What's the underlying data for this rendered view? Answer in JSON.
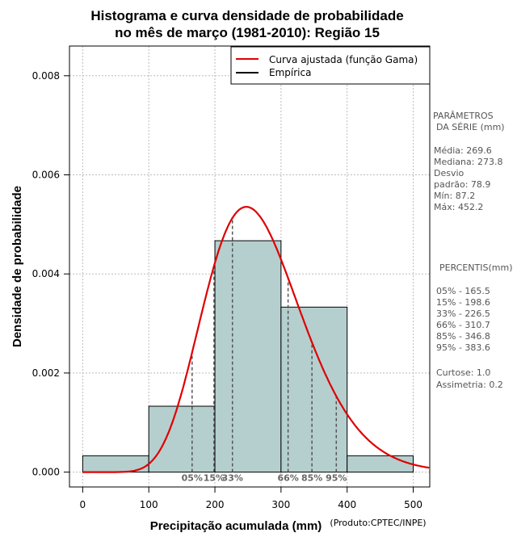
{
  "chart_data": {
    "type": "bar",
    "title_lines": [
      "Histograma e curva densidade de probabilidade",
      "no mês de março (1981-2010): Região 15"
    ],
    "xlabel": "Precipitação acumulada (mm)",
    "ylabel": "Densidade de probabilidade",
    "credit": "(Produto:CPTEC/INPE)",
    "xlim": [
      -20,
      525
    ],
    "ylim": [
      -0.0003,
      0.0086
    ],
    "x_ticks": [
      0,
      100,
      200,
      300,
      400,
      500
    ],
    "y_ticks": [
      0.0,
      0.002,
      0.004,
      0.006,
      0.008
    ],
    "y_tick_labels": [
      "0.000",
      "0.002",
      "0.004",
      "0.006",
      "0.008"
    ],
    "bins": [
      {
        "from": 0,
        "to": 100,
        "density": 0.00033
      },
      {
        "from": 100,
        "to": 200,
        "density": 0.00133
      },
      {
        "from": 200,
        "to": 300,
        "density": 0.00467
      },
      {
        "from": 300,
        "to": 400,
        "density": 0.00333
      },
      {
        "from": 400,
        "to": 500,
        "density": 0.00033
      }
    ],
    "gamma_fit": {
      "shape": 12.2,
      "scale": 22.1
    },
    "series": [
      {
        "name": "Curva ajustada (função Gama)",
        "color": "#e00000"
      },
      {
        "name": "Empírica",
        "color": "#000000"
      }
    ],
    "percentile_lines": [
      {
        "label": "05%",
        "value": 165.5
      },
      {
        "label": "15%",
        "value": 198.6
      },
      {
        "label": "33%",
        "value": 226.5
      },
      {
        "label": "66%",
        "value": 310.7
      },
      {
        "label": "85%",
        "value": 346.8
      },
      {
        "label": "95%",
        "value": 383.6
      }
    ],
    "legend_position": "top-right",
    "colors": {
      "bar_fill": "#b5cfcf",
      "bar_edge": "#000000",
      "grid": "#bbbbbb",
      "percentile_line": "#555555"
    }
  },
  "side_panel": {
    "params_title_1": "PARÂMETROS",
    "params_title_2": "DA SÉRIE (mm)",
    "media": "Média:  269.6",
    "mediana": "Mediana:  273.8",
    "desvio_1": "Desvio",
    "desvio_2": "padrão:  78.9",
    "min": "Mín:  87.2",
    "max": "Máx:  452.2",
    "percentis_title": "PERCENTIS(mm)",
    "p05": "05% -  165.5",
    "p15": "15% -  198.6",
    "p33": "33% -  226.5",
    "p66": "66% -  310.7",
    "p85": "85% -  346.8",
    "p95": "95% -  383.6",
    "curtose": "Curtose:  1.0",
    "assimetria": "Assimetria:  0.2"
  }
}
